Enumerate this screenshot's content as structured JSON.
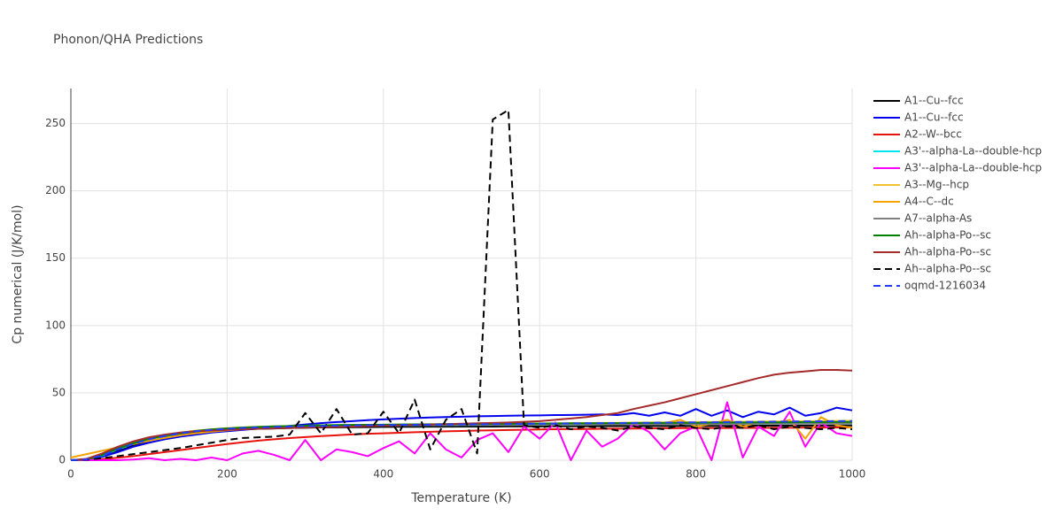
{
  "chart_data": {
    "type": "line",
    "title": "Phonon/QHA Predictions",
    "x_label": "Temperature (K)",
    "y_label": "Cp numerical (J/K/mol)",
    "x": [
      0,
      20,
      40,
      60,
      80,
      100,
      120,
      140,
      160,
      180,
      200,
      220,
      240,
      260,
      280,
      300,
      320,
      340,
      360,
      380,
      400,
      420,
      440,
      460,
      480,
      500,
      520,
      540,
      560,
      580,
      600,
      620,
      640,
      660,
      680,
      700,
      720,
      740,
      760,
      780,
      800,
      820,
      840,
      860,
      880,
      900,
      920,
      940,
      960,
      980,
      1000
    ],
    "xlim": [
      0,
      1000
    ],
    "xticks": [
      0,
      200,
      400,
      600,
      800,
      1000
    ],
    "ylim": [
      0,
      276
    ],
    "yticks": [
      0,
      50,
      100,
      150,
      200,
      250
    ],
    "grid": true,
    "series": [
      {
        "name": "A1--Cu--fcc",
        "color": "#000000",
        "dash": false,
        "values": [
          0,
          0.5,
          3,
          7,
          11,
          14.5,
          17,
          19,
          20.5,
          21.5,
          22.3,
          22.9,
          23.3,
          23.6,
          23.9,
          24.1,
          24.3,
          24.4,
          24.5,
          24.6,
          24.7,
          24.8,
          24.8,
          24.9,
          24.9,
          25,
          25,
          25,
          25.1,
          25.1,
          25.1,
          25.2,
          25.2,
          25.2,
          25.3,
          25.3,
          25.3,
          25.4,
          25.4,
          25.4,
          25.5,
          25.5,
          25.5,
          25.6,
          25.6,
          25.6,
          25.7,
          25.7,
          25.7,
          25.8,
          25.8
        ]
      },
      {
        "name": "A1--Cu--fcc",
        "color": "#0000ee",
        "dash": false,
        "values": [
          0,
          0.5,
          2.5,
          6,
          10,
          13,
          15.5,
          17.5,
          19,
          20.5,
          21.5,
          22.5,
          23.5,
          24.5,
          25.5,
          26.5,
          27.5,
          28.3,
          29,
          29.7,
          30.3,
          30.8,
          31.3,
          31.7,
          32,
          32.3,
          32.6,
          32.8,
          33,
          33.2,
          33.3,
          33.5,
          33.6,
          33.8,
          34,
          33.5,
          35,
          33,
          35.5,
          33,
          38,
          33,
          37,
          32,
          36,
          34,
          39,
          33,
          35,
          39,
          37
        ]
      },
      {
        "name": "A2--W--bcc",
        "color": "#e8120c",
        "dash": false,
        "values": [
          0,
          0.2,
          0.8,
          1.8,
          3,
          4.5,
          6,
          7.5,
          9,
          10.5,
          12,
          13.3,
          14.5,
          15.5,
          16.4,
          17.2,
          17.9,
          18.5,
          19.1,
          19.6,
          20,
          20.4,
          20.8,
          21.1,
          21.4,
          21.7,
          22,
          22.2,
          22.4,
          22.6,
          22.8,
          23,
          23.1,
          23.2,
          23.3,
          23.4,
          23.5,
          23.6,
          23.7,
          23.8,
          23.8,
          23.9,
          23.9,
          24,
          24,
          24.1,
          24.1,
          24.2,
          24.2,
          24.3,
          24.3
        ]
      },
      {
        "name": "A3'--alpha-La--double-hcp",
        "color": "#00e5ee",
        "dash": false,
        "values": [
          0,
          0.6,
          3.5,
          8,
          12,
          15.5,
          18,
          20,
          21.5,
          22.5,
          23.3,
          23.9,
          24.3,
          24.6,
          24.9,
          25.1,
          25.3,
          25.4,
          25.5,
          25.6,
          25.7,
          25.8,
          25.9,
          26,
          26,
          26.1,
          26.1,
          26.2,
          26.2,
          26.3,
          26.3,
          26.4,
          26.4,
          26.5,
          26.5,
          26.6,
          26.6,
          26.7,
          26.7,
          26.8,
          26.8,
          26.9,
          26.9,
          27,
          27,
          27.1,
          27.1,
          27.2,
          27.2,
          27.3,
          27.3
        ]
      },
      {
        "name": "A3'--alpha-La--double-hcp",
        "color": "#ff00ff",
        "dash": false,
        "values": [
          0,
          0,
          0,
          0,
          0.5,
          1.5,
          0,
          1,
          0,
          2,
          0,
          5,
          7,
          4,
          0,
          15,
          0,
          8,
          6,
          3,
          9,
          14,
          5,
          20,
          8,
          2,
          15,
          20,
          6,
          25,
          16,
          28,
          0,
          22,
          10,
          16,
          27,
          21,
          8,
          20,
          25,
          0,
          43,
          2,
          25,
          18,
          36,
          10,
          28,
          20,
          18
        ]
      },
      {
        "name": "A3--Mg--hcp",
        "color": "#f2c12e",
        "dash": false,
        "values": [
          0,
          0.8,
          4,
          8.5,
          12.5,
          16,
          18.5,
          20.5,
          22,
          23,
          23.8,
          24.4,
          24.8,
          25.1,
          25.4,
          25.6,
          25.8,
          26,
          26.1,
          26.2,
          26.3,
          26.4,
          26.5,
          26.6,
          26.7,
          26.8,
          26.9,
          27,
          27.1,
          27.2,
          27.3,
          27.4,
          27.5,
          27.6,
          27.7,
          27.8,
          27.9,
          28,
          28.1,
          28.2,
          28.3,
          28.4,
          28.5,
          28.6,
          28.7,
          28.8,
          28.9,
          29,
          29.1,
          29.2,
          29.3
        ]
      },
      {
        "name": "A4--C--dc",
        "color": "#f5a300",
        "dash": false,
        "values": [
          2,
          4.5,
          7,
          9.5,
          12,
          14.5,
          16.5,
          18.5,
          20,
          21.2,
          22.2,
          23,
          23.7,
          24.2,
          24.6,
          25,
          25.3,
          25.6,
          25.8,
          26,
          26.2,
          26.3,
          26.4,
          26.5,
          26.6,
          26.7,
          26.8,
          26.9,
          27,
          27,
          27.1,
          27.2,
          27.2,
          27.3,
          27.4,
          27.4,
          27.5,
          27.5,
          27.6,
          30,
          25,
          27,
          30,
          25,
          28,
          27,
          30,
          16,
          32,
          26,
          24
        ]
      },
      {
        "name": "A7--alpha-As",
        "color": "#808080",
        "dash": false,
        "values": [
          0,
          0.7,
          4,
          9,
          13,
          16,
          18.5,
          20.3,
          21.7,
          22.7,
          23.5,
          24,
          24.4,
          24.7,
          25,
          25.2,
          25.4,
          25.5,
          25.6,
          25.7,
          25.8,
          25.9,
          26,
          26,
          26.1,
          26.1,
          26.2,
          26.2,
          26.3,
          26.3,
          26.4,
          26.4,
          26.5,
          26.5,
          26.6,
          26.6,
          26.7,
          26.7,
          26.8,
          26.8,
          26.9,
          26.9,
          27,
          27,
          27.1,
          27.1,
          27.2,
          27.2,
          27.3,
          27.3,
          27.4
        ]
      },
      {
        "name": "Ah--alpha-Po--sc",
        "color": "#008000",
        "dash": false,
        "values": [
          0,
          0.6,
          3.8,
          8.5,
          12.5,
          15.8,
          18.3,
          20.2,
          21.7,
          22.8,
          23.6,
          24.2,
          24.7,
          25.1,
          25.4,
          25.7,
          25.9,
          26.1,
          26.2,
          26.3,
          26.4,
          26.5,
          26.6,
          26.7,
          26.8,
          26.9,
          27,
          27,
          27.1,
          27.2,
          27.2,
          27.3,
          27.4,
          27.4,
          27.5,
          27.5,
          27.6,
          27.7,
          27.7,
          27.8,
          27.8,
          27.9,
          28,
          28,
          28.1,
          28.1,
          28.2,
          28.3,
          28.3,
          28.4,
          28.4
        ]
      },
      {
        "name": "Ah--alpha-Po--sc",
        "color": "#a52a2a",
        "dash": false,
        "values": [
          0,
          1,
          5,
          10,
          14,
          17,
          19,
          20.5,
          21.5,
          22,
          22.5,
          23,
          23.3,
          23.6,
          23.9,
          24.2,
          24.5,
          24.8,
          25,
          25.3,
          25.6,
          25.9,
          26.2,
          26.5,
          26.8,
          27.1,
          27.4,
          27.7,
          28,
          28.5,
          29,
          30,
          31,
          32,
          33.5,
          35,
          38,
          40.5,
          43,
          46,
          49,
          52,
          55,
          58,
          61,
          63.5,
          65,
          66,
          67,
          67,
          66.5
        ]
      },
      {
        "name": "Ah--alpha-Po--sc",
        "color": "#000000",
        "dash": true,
        "values": [
          0,
          0.3,
          1.5,
          3,
          4.5,
          6,
          7.5,
          9,
          11,
          13,
          15,
          16.5,
          17,
          17.5,
          19,
          35,
          20,
          38,
          19,
          20,
          36,
          20,
          45,
          8,
          30,
          38,
          5,
          253,
          260,
          26,
          24,
          26,
          23,
          25,
          24,
          22,
          25,
          24,
          23,
          26,
          24,
          23,
          25,
          24,
          26,
          23,
          25,
          24,
          23,
          24,
          23
        ]
      },
      {
        "name": "oqmd-1216034",
        "color": "#1f3cff",
        "dash": true,
        "values": [
          0,
          0.6,
          3.5,
          8,
          12,
          15.5,
          18,
          20,
          21.5,
          22.5,
          23.3,
          23.9,
          24.3,
          24.7,
          25,
          25.2,
          25.4,
          25.6,
          25.8,
          26,
          26.1,
          26.2,
          26.3,
          26.4,
          26.5,
          26.6,
          26.7,
          26.8,
          26.9,
          27,
          27.1,
          27.2,
          27.3,
          27.4,
          27.5,
          27.6,
          27.7,
          27.8,
          27.9,
          28,
          28.1,
          28.2,
          28.3,
          28.4,
          28.5,
          28.6,
          28.7,
          28.8,
          28.9,
          29,
          29.1
        ]
      }
    ]
  }
}
